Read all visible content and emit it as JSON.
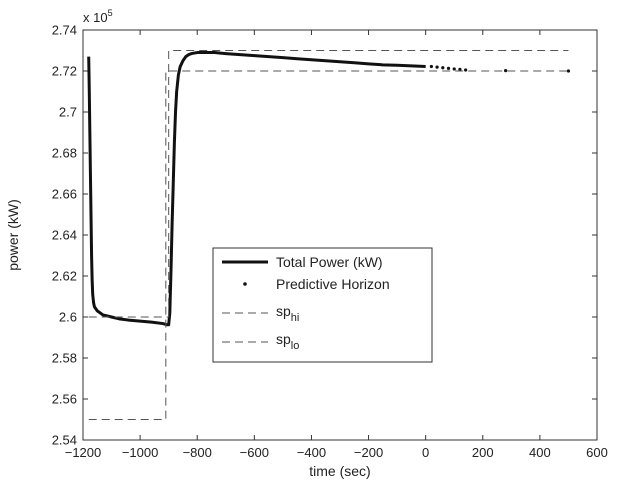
{
  "chart_data": {
    "type": "line",
    "title": "",
    "xlabel": "time (sec)",
    "ylabel": "power (kW)",
    "y_multiplier_label": "x 10",
    "y_multiplier_exponent": "5",
    "xlim": [
      -1200,
      600
    ],
    "ylim": [
      2.54,
      2.74
    ],
    "x_ticks": [
      -1200,
      -1000,
      -800,
      -600,
      -400,
      -200,
      0,
      200,
      400,
      600
    ],
    "x_tick_labels": [
      "−1200",
      "−1000",
      "−800",
      "−600",
      "−400",
      "−200",
      "0",
      "200",
      "400",
      "600"
    ],
    "y_ticks": [
      2.54,
      2.56,
      2.58,
      2.6,
      2.62,
      2.64,
      2.66,
      2.68,
      2.7,
      2.72,
      2.74
    ],
    "y_tick_labels": [
      "2.54",
      "2.56",
      "2.58",
      "2.6",
      "2.62",
      "2.64",
      "2.66",
      "2.68",
      "2.7",
      "2.72",
      "2.74"
    ],
    "grid": false,
    "legend_position": "center",
    "legend": {
      "total_label": "Total Power (kW)",
      "predictive_label": "Predictive Horizon",
      "sp_hi_base": "sp",
      "sp_hi_sub": "hi",
      "sp_lo_base": "sp",
      "sp_lo_sub": "lo"
    },
    "series": [
      {
        "name": "Total Power (kW)",
        "style": "solid-thick",
        "points": [
          [
            -1180,
            2.727
          ],
          [
            -1178,
            2.71
          ],
          [
            -1176,
            2.69
          ],
          [
            -1174,
            2.67
          ],
          [
            -1172,
            2.65
          ],
          [
            -1170,
            2.63
          ],
          [
            -1168,
            2.618
          ],
          [
            -1166,
            2.611
          ],
          [
            -1163,
            2.607
          ],
          [
            -1160,
            2.605
          ],
          [
            -1150,
            2.603
          ],
          [
            -1130,
            2.601
          ],
          [
            -1100,
            2.6
          ],
          [
            -1070,
            2.599
          ],
          [
            -1040,
            2.5985
          ],
          [
            -1000,
            2.598
          ],
          [
            -960,
            2.5975
          ],
          [
            -920,
            2.5968
          ],
          [
            -905,
            2.5962
          ],
          [
            -900,
            2.5962
          ],
          [
            -896,
            2.602
          ],
          [
            -892,
            2.622
          ],
          [
            -888,
            2.645
          ],
          [
            -884,
            2.665
          ],
          [
            -880,
            2.685
          ],
          [
            -876,
            2.7
          ],
          [
            -872,
            2.71
          ],
          [
            -866,
            2.718
          ],
          [
            -860,
            2.722
          ],
          [
            -850,
            2.725
          ],
          [
            -840,
            2.727
          ],
          [
            -830,
            2.728
          ],
          [
            -820,
            2.7285
          ],
          [
            -800,
            2.729
          ],
          [
            -780,
            2.729
          ],
          [
            -760,
            2.729
          ],
          [
            -740,
            2.729
          ],
          [
            -700,
            2.7285
          ],
          [
            -650,
            2.728
          ],
          [
            -600,
            2.7275
          ],
          [
            -550,
            2.727
          ],
          [
            -500,
            2.7265
          ],
          [
            -450,
            2.726
          ],
          [
            -400,
            2.7255
          ],
          [
            -350,
            2.725
          ],
          [
            -300,
            2.7245
          ],
          [
            -250,
            2.724
          ],
          [
            -200,
            2.7235
          ],
          [
            -150,
            2.723
          ],
          [
            -100,
            2.7228
          ],
          [
            -50,
            2.7225
          ],
          [
            0,
            2.7222
          ]
        ]
      },
      {
        "name": "Predictive Horizon",
        "style": "dots",
        "points": [
          [
            20,
            2.7222
          ],
          [
            40,
            2.7219
          ],
          [
            60,
            2.7216
          ],
          [
            80,
            2.7213
          ],
          [
            100,
            2.721
          ],
          [
            120,
            2.7208
          ],
          [
            140,
            2.7205
          ],
          [
            280,
            2.7202
          ],
          [
            500,
            2.72
          ]
        ]
      },
      {
        "name": "sp_hi",
        "style": "dashed",
        "points": [
          [
            -1180,
            2.6
          ],
          [
            -900,
            2.6
          ],
          [
            -900,
            2.73
          ],
          [
            500,
            2.73
          ]
        ]
      },
      {
        "name": "sp_lo",
        "style": "dashed",
        "points": [
          [
            -1180,
            2.55
          ],
          [
            -910,
            2.55
          ],
          [
            -910,
            2.72
          ],
          [
            500,
            2.72
          ]
        ]
      }
    ]
  }
}
